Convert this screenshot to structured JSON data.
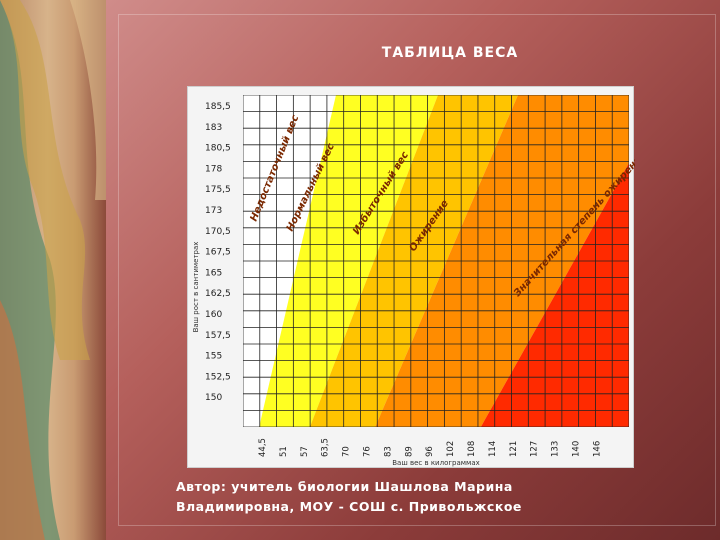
{
  "slide": {
    "title": "ТАБЛИЦА ВЕСА",
    "caption_line1": "Автор: учитель биологии Шашлова Марина",
    "caption_line2": "Владимировна, МОУ - СОШ с. Привольжское"
  },
  "chart_data": {
    "type": "heatmap",
    "title": "",
    "xlabel": "Ваш вес в килограммах",
    "ylabel": "Ваш рост в сантиметрах",
    "x_ticks": [
      "44,5",
      "51",
      "57",
      "63,5",
      "70",
      "76",
      "83",
      "89",
      "96",
      "102",
      "108",
      "114",
      "121",
      "127",
      "133",
      "140",
      "146"
    ],
    "y_ticks": [
      "185,5",
      "183",
      "180,5",
      "178",
      "175,5",
      "173",
      "170,5",
      "167,5",
      "165",
      "162,5",
      "160",
      "157,5",
      "155",
      "152,5",
      "150"
    ],
    "zones": [
      {
        "name": "Недостаточный вес",
        "color": "#ffffff"
      },
      {
        "name": "Нормальный вес",
        "color": "#ffff22"
      },
      {
        "name": "Избыточный вес",
        "color": "#ffc400"
      },
      {
        "name": "Ожирение",
        "color": "#ff8c00"
      },
      {
        "name": "Значительная степень ожирения",
        "color": "#ff2a00"
      }
    ],
    "grid": true
  }
}
